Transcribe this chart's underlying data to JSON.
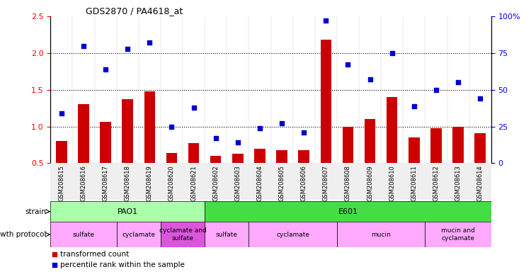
{
  "title": "GDS2870 / PA4618_at",
  "samples": [
    "GSM208615",
    "GSM208616",
    "GSM208617",
    "GSM208618",
    "GSM208619",
    "GSM208620",
    "GSM208621",
    "GSM208602",
    "GSM208603",
    "GSM208604",
    "GSM208605",
    "GSM208606",
    "GSM208607",
    "GSM208608",
    "GSM208609",
    "GSM208610",
    "GSM208611",
    "GSM208612",
    "GSM208613",
    "GSM208614"
  ],
  "transformed_count": [
    0.8,
    1.3,
    1.06,
    1.37,
    1.48,
    0.64,
    0.77,
    0.6,
    0.63,
    0.7,
    0.68,
    0.68,
    2.18,
    1.0,
    1.1,
    1.4,
    0.85,
    0.98,
    1.0,
    0.91
  ],
  "percentile_rank": [
    34,
    80,
    64,
    78,
    82,
    25,
    38,
    17,
    14,
    24,
    27,
    21,
    97,
    67,
    57,
    75,
    39,
    50,
    55,
    44
  ],
  "ylim_left": [
    0.5,
    2.5
  ],
  "ylim_right": [
    0,
    100
  ],
  "yticks_left": [
    0.5,
    1.0,
    1.5,
    2.0,
    2.5
  ],
  "yticks_right": [
    0,
    25,
    50,
    75,
    100
  ],
  "bar_color": "#cc0000",
  "dot_color": "#0000cc",
  "strain_pao1": {
    "label": "PAO1",
    "start": 0,
    "end": 7,
    "color": "#aaffaa"
  },
  "strain_e601": {
    "label": "E601",
    "start": 7,
    "end": 20,
    "color": "#44dd44"
  },
  "growth_groups": [
    {
      "label": "sulfate",
      "start": 0,
      "end": 3,
      "color": "#ffaaff"
    },
    {
      "label": "cyclamate",
      "start": 3,
      "end": 5,
      "color": "#ffaaff"
    },
    {
      "label": "cyclamate and\nsulfate",
      "start": 5,
      "end": 7,
      "color": "#dd55dd"
    },
    {
      "label": "sulfate",
      "start": 7,
      "end": 9,
      "color": "#ffaaff"
    },
    {
      "label": "cyclamate",
      "start": 9,
      "end": 13,
      "color": "#ffaaff"
    },
    {
      "label": "mucin",
      "start": 13,
      "end": 17,
      "color": "#ffaaff"
    },
    {
      "label": "mucin and\ncyclamate",
      "start": 17,
      "end": 20,
      "color": "#ffaaff"
    }
  ],
  "legend_bar_label": "transformed count",
  "legend_dot_label": "percentile rank within the sample",
  "strain_label": "strain",
  "growth_label": "growth protocol",
  "fig_width": 7.5,
  "fig_height": 3.84,
  "dpi": 100
}
